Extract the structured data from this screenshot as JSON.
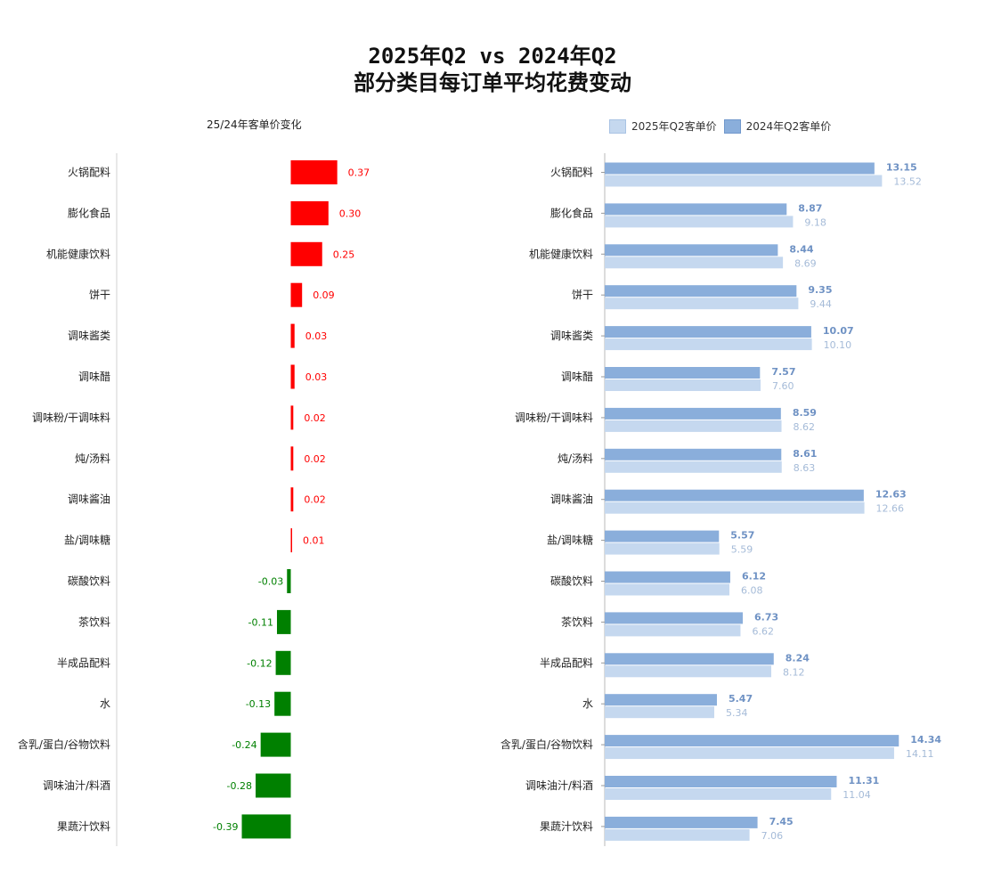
{
  "title_line1": "2025年Q2 vs 2024年Q2",
  "title_line2": "部分类目每订单平均花费变动",
  "chart_data": [
    {
      "type": "bar",
      "orientation": "horizontal",
      "title": "25/24年客单价变化",
      "categories": [
        "火锅配料",
        "膨化食品",
        "机能健康饮料",
        "饼干",
        "调味酱类",
        "调味醋",
        "调味粉/干调味料",
        "炖/汤料",
        "调味酱油",
        "盐/调味糖",
        "碳酸饮料",
        "茶饮料",
        "半成品配料",
        "水",
        "含乳/蛋白/谷物饮料",
        "调味油汁/料酒",
        "果蔬汁饮料"
      ],
      "values": [
        0.37,
        0.3,
        0.25,
        0.09,
        0.03,
        0.03,
        0.02,
        0.02,
        0.02,
        0.01,
        -0.03,
        -0.11,
        -0.12,
        -0.13,
        -0.24,
        -0.28,
        -0.39
      ],
      "labels": [
        "0.37",
        "0.30",
        "0.25",
        "0.09",
        "0.03",
        "0.03",
        "0.02",
        "0.02",
        "0.02",
        "0.01",
        "-0.03",
        "-0.11",
        "-0.12",
        "-0.13",
        "-0.24",
        "-0.28",
        "-0.39"
      ],
      "colors": {
        "positive": "#ff0000",
        "negative": "#008000"
      }
    },
    {
      "type": "bar",
      "orientation": "horizontal",
      "categories": [
        "火锅配料",
        "膨化食品",
        "机能健康饮料",
        "饼干",
        "调味酱类",
        "调味醋",
        "调味粉/干调味料",
        "炖/汤料",
        "调味酱油",
        "盐/调味糖",
        "碳酸饮料",
        "茶饮料",
        "半成品配料",
        "水",
        "含乳/蛋白/谷物饮料",
        "调味油汁/料酒",
        "果蔬汁饮料"
      ],
      "legend_position": "top",
      "series": [
        {
          "name": "2025年Q2客单价",
          "color": "#c5d8ef",
          "values": [
            13.52,
            9.18,
            8.69,
            9.44,
            10.1,
            7.6,
            8.62,
            8.63,
            12.66,
            5.59,
            6.08,
            6.62,
            8.12,
            5.34,
            14.11,
            11.04,
            7.06
          ],
          "labels": [
            "13.52",
            "9.18",
            "8.69",
            "9.44",
            "10.10",
            "7.60",
            "8.62",
            "8.63",
            "12.66",
            "5.59",
            "6.08",
            "6.62",
            "8.12",
            "5.34",
            "14.11",
            "11.04",
            "7.06"
          ]
        },
        {
          "name": "2024年Q2客单价",
          "color": "#8aaedb",
          "values": [
            13.15,
            8.87,
            8.44,
            9.35,
            10.07,
            7.57,
            8.59,
            8.61,
            12.63,
            5.57,
            6.12,
            6.73,
            8.24,
            5.47,
            14.34,
            11.31,
            7.45
          ],
          "labels": [
            "13.15",
            "8.87",
            "8.44",
            "9.35",
            "10.07",
            "7.57",
            "8.59",
            "8.61",
            "12.63",
            "5.57",
            "6.12",
            "6.73",
            "8.24",
            "5.47",
            "14.34",
            "11.31",
            "7.45"
          ]
        }
      ]
    }
  ]
}
